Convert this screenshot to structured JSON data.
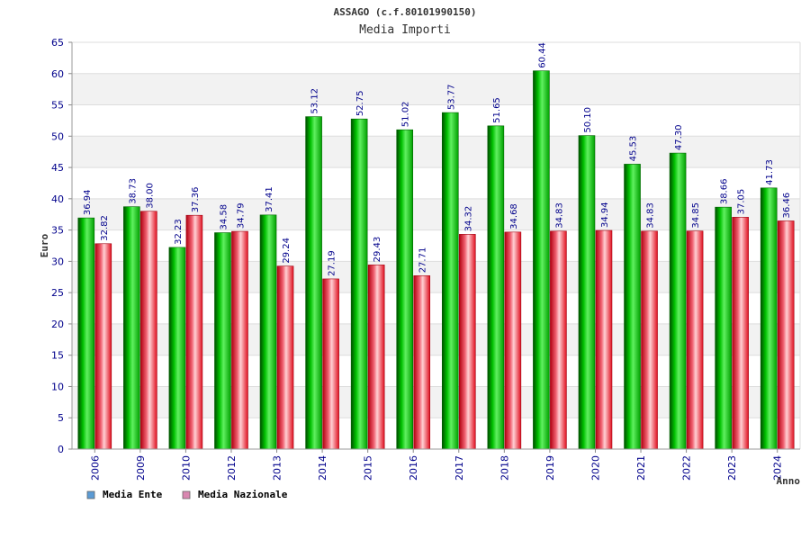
{
  "chart_data": {
    "type": "bar",
    "title": "ASSAGO (c.f.80101990150)",
    "subtitle": "Media Importi",
    "xlabel": "Anno",
    "ylabel": "Euro",
    "ylim": [
      0,
      65
    ],
    "yticks": [
      0,
      5,
      10,
      15,
      20,
      25,
      30,
      35,
      40,
      45,
      50,
      55,
      60,
      65
    ],
    "categories": [
      "2006",
      "2009",
      "2010",
      "2012",
      "2013",
      "2014",
      "2015",
      "2016",
      "2017",
      "2018",
      "2019",
      "2020",
      "2021",
      "2022",
      "2023",
      "2024"
    ],
    "series": [
      {
        "name": "Media Ente",
        "value_labels": [
          "36.94",
          "38.73",
          "32.23",
          "34.58",
          "37.41",
          "53.12",
          "52.75",
          "51.02",
          "53.77",
          "51.65",
          "60.44",
          "50.10",
          "45.53",
          "47.30",
          "38.66",
          "41.73"
        ],
        "values": [
          36.94,
          38.73,
          32.23,
          34.58,
          37.41,
          53.12,
          52.75,
          51.02,
          53.77,
          51.65,
          60.44,
          50.1,
          45.53,
          47.3,
          38.66,
          41.73
        ],
        "color": "#00b000",
        "legend_color": "#5b9bd5"
      },
      {
        "name": "Media Nazionale",
        "value_labels": [
          "32.82",
          "38.00",
          "37.36",
          "34.79",
          "29.24",
          "27.19",
          "29.43",
          "27.71",
          "34.32",
          "34.68",
          "34.83",
          "34.94",
          "34.83",
          "34.85",
          "37.05",
          "36.46"
        ],
        "values": [
          32.82,
          38.0,
          37.36,
          34.79,
          29.24,
          27.19,
          29.43,
          27.71,
          34.32,
          34.68,
          34.83,
          34.94,
          34.83,
          34.85,
          37.05,
          36.46
        ],
        "color": "#e8202a",
        "legend_color": "#d987b0"
      }
    ],
    "legend_position": "bottom-left",
    "grid": true
  }
}
